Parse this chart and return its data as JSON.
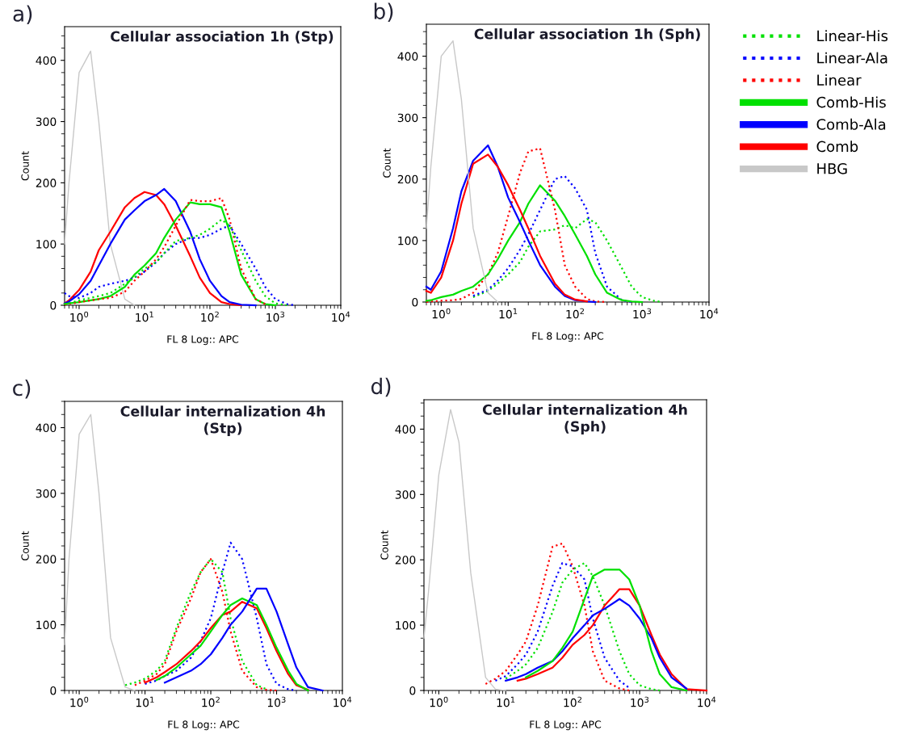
{
  "chart_data": [
    {
      "type": "line",
      "title": "Cellular association 1h (Stp)",
      "xlabel": "FL 8 Log:: APC",
      "ylabel": "Count",
      "annotations": [
        "a)"
      ],
      "log": "x",
      "legend": false,
      "grid": false,
      "xlim": [
        0.6,
        10000
      ],
      "ylim": [
        0,
        455
      ],
      "yticks": [
        0,
        100,
        200,
        300,
        400
      ],
      "xticks": [
        {
          "value": 1,
          "label": "10$^{0}$"
        },
        {
          "value": 10,
          "label": "10$^{1}$"
        },
        {
          "value": 100,
          "label": "10$^{2}$"
        },
        {
          "value": 1000,
          "label": "10$^{3}$"
        },
        {
          "value": 10000,
          "label": "10$^{4}$"
        }
      ],
      "x": [
        0.6,
        0.7,
        1,
        1.5,
        2,
        3,
        5,
        7,
        10,
        15,
        20,
        30,
        50,
        70,
        100,
        150,
        200,
        300,
        500,
        700,
        1000,
        1500,
        2000
      ],
      "series": [
        {
          "color": "#c8c8c8",
          "line_style": "solid",
          "values": [
            100,
            200,
            380,
            415,
            300,
            100,
            10,
            0,
            null,
            null,
            null,
            null,
            null,
            null,
            null,
            null,
            null,
            null,
            null,
            null,
            null,
            null,
            null
          ]
        },
        {
          "color": "#ff0000",
          "line_style": "solid",
          "values": [
            3,
            8,
            25,
            55,
            90,
            120,
            160,
            175,
            185,
            180,
            165,
            130,
            80,
            45,
            20,
            5,
            2,
            0,
            null,
            null,
            null,
            null,
            null
          ]
        },
        {
          "color": "#0000ff",
          "line_style": "solid",
          "values": [
            3,
            6,
            18,
            40,
            65,
            100,
            140,
            155,
            170,
            180,
            190,
            170,
            120,
            75,
            40,
            15,
            5,
            1,
            0,
            null,
            null,
            null,
            null
          ]
        },
        {
          "color": "#00e000",
          "line_style": "solid",
          "values": [
            2,
            3,
            5,
            8,
            10,
            15,
            30,
            50,
            65,
            85,
            110,
            140,
            168,
            165,
            165,
            160,
            120,
            50,
            10,
            2,
            0,
            null,
            null
          ]
        },
        {
          "color": "#ff0000",
          "line_style": "dotted",
          "values": [
            1,
            2,
            5,
            8,
            10,
            12,
            22,
            40,
            55,
            75,
            95,
            130,
            172,
            170,
            170,
            175,
            140,
            60,
            10,
            2,
            null,
            null,
            null
          ]
        },
        {
          "color": "#0000ff",
          "line_style": "dotted",
          "values": [
            20,
            15,
            12,
            20,
            30,
            35,
            40,
            45,
            55,
            70,
            85,
            100,
            110,
            110,
            115,
            125,
            130,
            100,
            60,
            30,
            10,
            2,
            0
          ]
        },
        {
          "color": "#00e000",
          "line_style": "dotted",
          "values": [
            2,
            3,
            8,
            12,
            15,
            20,
            35,
            45,
            60,
            70,
            85,
            105,
            110,
            115,
            125,
            140,
            130,
            90,
            40,
            15,
            3,
            0,
            null
          ]
        }
      ]
    },
    {
      "type": "line",
      "title": "Cellular association 1h (Sph)",
      "xlabel": "FL 8 Log:: APC",
      "ylabel": "Count",
      "annotations": [
        "b)"
      ],
      "log": "x",
      "legend": "right",
      "grid": false,
      "xlim": [
        0.6,
        10000
      ],
      "ylim": [
        0,
        452
      ],
      "yticks": [
        0,
        100,
        200,
        300,
        400
      ],
      "xticks": [
        {
          "value": 1,
          "label": "10$^{0}$"
        },
        {
          "value": 10,
          "label": "10$^{1}$"
        },
        {
          "value": 100,
          "label": "10$^{2}$"
        },
        {
          "value": 1000,
          "label": "10$^{3}$"
        },
        {
          "value": 10000,
          "label": "10$^{4}$"
        }
      ],
      "x": [
        0.6,
        0.7,
        1,
        1.5,
        2,
        3,
        5,
        7,
        10,
        15,
        20,
        30,
        50,
        70,
        100,
        150,
        200,
        300,
        500,
        700,
        1000,
        1500,
        2000
      ],
      "series": [
        {
          "name": "Linear-His",
          "color": "#00e000",
          "line_style": "dotted",
          "values": [
            null,
            null,
            null,
            null,
            null,
            8,
            18,
            30,
            45,
            65,
            90,
            115,
            118,
            125,
            120,
            135,
            130,
            100,
            55,
            25,
            8,
            2,
            0
          ]
        },
        {
          "name": "Linear-Ala",
          "color": "#0000ff",
          "line_style": "dotted",
          "values": [
            null,
            null,
            null,
            null,
            null,
            10,
            20,
            35,
            55,
            85,
            110,
            150,
            200,
            205,
            185,
            150,
            80,
            25,
            3,
            0,
            null,
            null,
            null
          ]
        },
        {
          "name": "Linear",
          "color": "#ff0000",
          "line_style": "dotted",
          "values": [
            0,
            1,
            2,
            3,
            5,
            15,
            45,
            80,
            140,
            210,
            245,
            250,
            150,
            60,
            25,
            5,
            1,
            0,
            null,
            null,
            null,
            null,
            null
          ]
        },
        {
          "name": "Comb-His",
          "color": "#00e000",
          "line_style": "solid",
          "values": [
            2,
            3,
            8,
            12,
            18,
            25,
            45,
            70,
            100,
            130,
            160,
            190,
            165,
            140,
            110,
            75,
            45,
            15,
            3,
            1,
            0,
            null,
            null
          ]
        },
        {
          "name": "Comb-Ala",
          "color": "#0000ff",
          "line_style": "solid",
          "values": [
            25,
            20,
            50,
            120,
            180,
            230,
            255,
            220,
            170,
            130,
            100,
            60,
            25,
            10,
            3,
            1,
            0,
            null,
            null,
            null,
            null,
            null,
            null
          ]
        },
        {
          "name": "Comb",
          "color": "#ff0000",
          "line_style": "solid",
          "values": [
            18,
            15,
            40,
            100,
            160,
            225,
            240,
            220,
            190,
            150,
            120,
            75,
            30,
            12,
            4,
            1,
            null,
            null,
            null,
            null,
            null,
            null,
            null
          ]
        },
        {
          "name": "HBG",
          "color": "#c8c8c8",
          "line_style": "solid",
          "values": [
            120,
            220,
            400,
            425,
            330,
            120,
            15,
            0,
            null,
            null,
            null,
            null,
            null,
            null,
            null,
            null,
            null,
            null,
            null,
            null,
            null,
            null,
            null
          ]
        }
      ]
    },
    {
      "type": "line",
      "title": "Cellular internalization 4h\n(Stp)",
      "xlabel": "FL 8 Log:: APC",
      "ylabel": "Count",
      "annotations": [
        "c)"
      ],
      "log": "x",
      "legend": false,
      "grid": false,
      "xlim": [
        0.6,
        10000
      ],
      "ylim": [
        0,
        440
      ],
      "yticks": [
        0,
        100,
        200,
        300,
        400
      ],
      "xticks": [
        {
          "value": 1,
          "label": "10$^{0}$"
        },
        {
          "value": 10,
          "label": "10$^{1}$"
        },
        {
          "value": 100,
          "label": "10$^{2}$"
        },
        {
          "value": 1000,
          "label": "10$^{3}$"
        },
        {
          "value": 10000,
          "label": "10$^{4}$"
        }
      ],
      "x": [
        0.6,
        0.7,
        1,
        1.5,
        2,
        3,
        5,
        7,
        10,
        15,
        20,
        30,
        50,
        70,
        100,
        150,
        200,
        300,
        500,
        700,
        1000,
        1500,
        2000,
        3000,
        5000
      ],
      "series": [
        {
          "color": "#c8c8c8",
          "line_style": "solid",
          "values": [
            70,
            200,
            390,
            420,
            300,
            80,
            5,
            0,
            null,
            null,
            null,
            null,
            null,
            null,
            null,
            null,
            null,
            null,
            null,
            null,
            null,
            null,
            null,
            null,
            null
          ]
        },
        {
          "color": "#ff0000",
          "line_style": "dotted",
          "values": [
            null,
            null,
            null,
            null,
            null,
            null,
            null,
            8,
            15,
            25,
            40,
            90,
            140,
            180,
            200,
            150,
            90,
            30,
            5,
            1,
            0,
            null,
            null,
            null,
            null
          ]
        },
        {
          "color": "#00e000",
          "line_style": "dotted",
          "values": [
            null,
            null,
            null,
            null,
            null,
            null,
            8,
            12,
            18,
            30,
            45,
            95,
            150,
            180,
            200,
            180,
            110,
            45,
            8,
            2,
            null,
            null,
            null,
            null,
            null
          ]
        },
        {
          "color": "#0000ff",
          "line_style": "dotted",
          "values": [
            null,
            null,
            null,
            null,
            null,
            null,
            null,
            null,
            10,
            15,
            22,
            30,
            50,
            75,
            110,
            180,
            225,
            200,
            110,
            40,
            10,
            2,
            0,
            null,
            null
          ]
        },
        {
          "color": "#ff0000",
          "line_style": "solid",
          "values": [
            null,
            null,
            null,
            null,
            null,
            null,
            null,
            null,
            12,
            20,
            28,
            40,
            60,
            75,
            95,
            115,
            120,
            135,
            125,
            95,
            60,
            25,
            8,
            1,
            null
          ]
        },
        {
          "color": "#00e000",
          "line_style": "solid",
          "values": [
            null,
            null,
            null,
            null,
            null,
            null,
            null,
            null,
            null,
            16,
            22,
            35,
            55,
            68,
            90,
            115,
            130,
            140,
            130,
            100,
            65,
            30,
            10,
            0,
            null
          ]
        },
        {
          "color": "#0000ff",
          "line_style": "solid",
          "values": [
            null,
            null,
            null,
            null,
            null,
            null,
            null,
            null,
            null,
            null,
            12,
            20,
            30,
            40,
            55,
            80,
            100,
            120,
            155,
            155,
            120,
            70,
            35,
            5,
            0
          ]
        }
      ]
    },
    {
      "type": "line",
      "title": "Cellular internalization 4h\n(Sph)",
      "xlabel": "FL 8 Log:: APC",
      "ylabel": "Count",
      "annotations": [
        "d)"
      ],
      "log": "x",
      "legend": false,
      "grid": false,
      "xlim": [
        0.6,
        10000
      ],
      "ylim": [
        0,
        445
      ],
      "yticks": [
        0,
        100,
        200,
        300,
        400
      ],
      "xticks": [
        {
          "value": 1,
          "label": "10$^{0}$"
        },
        {
          "value": 10,
          "label": "10$^{1}$"
        },
        {
          "value": 100,
          "label": "10$^{2}$"
        },
        {
          "value": 1000,
          "label": "10$^{3}$"
        },
        {
          "value": 10000,
          "label": "10$^{4}$"
        }
      ],
      "x": [
        0.6,
        0.7,
        1,
        1.5,
        2,
        3,
        5,
        7,
        10,
        15,
        20,
        30,
        50,
        70,
        100,
        150,
        200,
        300,
        500,
        700,
        1000,
        1500,
        2000,
        3000,
        5000,
        10000
      ],
      "series": [
        {
          "color": "#c8c8c8",
          "line_style": "solid",
          "values": [
            80,
            150,
            330,
            430,
            380,
            180,
            20,
            2,
            0,
            null,
            null,
            null,
            null,
            null,
            null,
            null,
            null,
            null,
            null,
            null,
            null,
            null,
            null,
            null,
            null,
            null
          ]
        },
        {
          "color": "#ff0000",
          "line_style": "dotted",
          "values": [
            null,
            null,
            null,
            null,
            null,
            null,
            10,
            18,
            30,
            55,
            75,
            130,
            220,
            225,
            190,
            130,
            60,
            15,
            3,
            0,
            null,
            null,
            null,
            null,
            null,
            null
          ]
        },
        {
          "color": "#0000ff",
          "line_style": "dotted",
          "values": [
            null,
            null,
            null,
            null,
            null,
            null,
            null,
            15,
            22,
            40,
            55,
            90,
            160,
            195,
            190,
            170,
            110,
            50,
            15,
            4,
            null,
            null,
            null,
            null,
            null,
            null
          ]
        },
        {
          "color": "#00e000",
          "line_style": "dotted",
          "values": [
            null,
            null,
            null,
            null,
            null,
            null,
            null,
            null,
            18,
            30,
            40,
            65,
            120,
            165,
            185,
            195,
            175,
            130,
            60,
            25,
            8,
            2,
            0,
            null,
            null,
            null
          ]
        },
        {
          "color": "#ff0000",
          "line_style": "solid",
          "values": [
            null,
            null,
            null,
            null,
            null,
            null,
            null,
            null,
            null,
            15,
            18,
            25,
            35,
            50,
            70,
            85,
            100,
            130,
            155,
            155,
            130,
            85,
            55,
            25,
            2,
            0
          ]
        },
        {
          "color": "#0000ff",
          "line_style": "solid",
          "values": [
            null,
            null,
            null,
            null,
            null,
            null,
            null,
            null,
            15,
            20,
            25,
            35,
            45,
            60,
            80,
            100,
            115,
            125,
            140,
            130,
            110,
            80,
            50,
            20,
            3,
            null
          ]
        },
        {
          "color": "#00e000",
          "line_style": "solid",
          "values": [
            null,
            null,
            null,
            null,
            null,
            null,
            null,
            null,
            null,
            null,
            20,
            30,
            45,
            65,
            90,
            140,
            175,
            185,
            185,
            170,
            130,
            60,
            25,
            5,
            0,
            null
          ]
        }
      ]
    }
  ]
}
